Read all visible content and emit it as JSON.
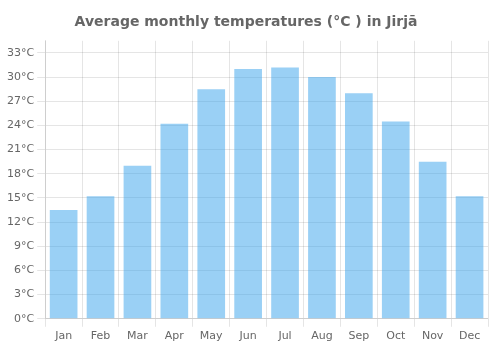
{
  "chart_data": {
    "type": "bar",
    "title": "Average monthly temperatures (°C ) in Jirjā",
    "categories": [
      "Jan",
      "Feb",
      "Mar",
      "Apr",
      "May",
      "Jun",
      "Jul",
      "Aug",
      "Sep",
      "Oct",
      "Nov",
      "Dec"
    ],
    "values": [
      13.5,
      15.2,
      19.0,
      24.2,
      28.5,
      31.0,
      31.2,
      30.0,
      28.0,
      24.5,
      19.5,
      15.2
    ],
    "ylim": [
      0,
      34.5
    ],
    "yticks": [
      {
        "value": 0,
        "label": "0°C"
      },
      {
        "value": 3,
        "label": "3°C"
      },
      {
        "value": 6,
        "label": "6°C"
      },
      {
        "value": 9,
        "label": "9°C"
      },
      {
        "value": 12,
        "label": "12°C"
      },
      {
        "value": 15,
        "label": "15°C"
      },
      {
        "value": 18,
        "label": "18°C"
      },
      {
        "value": 21,
        "label": "21°C"
      },
      {
        "value": 24,
        "label": "24°C"
      },
      {
        "value": 27,
        "label": "27°C"
      },
      {
        "value": 30,
        "label": "30°C"
      },
      {
        "value": 33,
        "label": "33°C"
      }
    ],
    "grid": true
  }
}
